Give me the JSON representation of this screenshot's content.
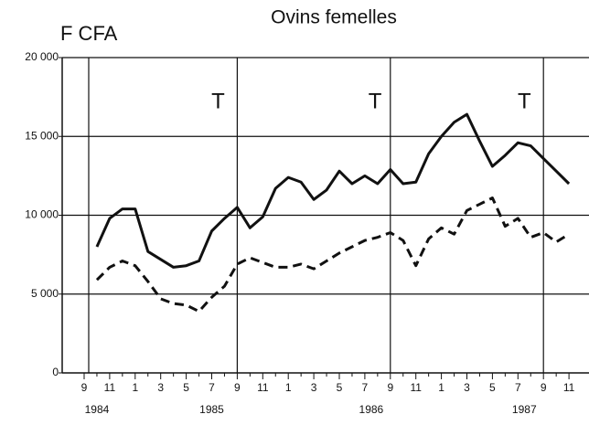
{
  "chart_data": {
    "type": "line",
    "title": "Ovins femelles",
    "ylabel": "F CFA",
    "categories": [
      "9",
      null,
      "11",
      null,
      "1",
      null,
      "3",
      null,
      "5",
      null,
      "7",
      null,
      "9",
      null,
      "11",
      null,
      "1",
      null,
      "3",
      null,
      "5",
      null,
      "7",
      null,
      "9",
      null,
      "11",
      null,
      "1",
      null,
      "3",
      null,
      "5",
      null,
      "7",
      null,
      "9",
      null,
      "11"
    ],
    "year_labels": [
      "1984",
      "1985",
      "1986",
      "1987"
    ],
    "annotations": [
      "T",
      "T",
      "T"
    ],
    "series": [
      {
        "name": "solid",
        "color": "#111111",
        "dash": false,
        "values": [
          null,
          8000,
          9800,
          10400,
          10400,
          7700,
          7200,
          6700,
          6800,
          7100,
          9000,
          9800,
          10500,
          9200,
          9900,
          11700,
          12400,
          12100,
          11000,
          11600,
          12800,
          12000,
          12500,
          12000,
          12900,
          12000,
          12100,
          13900,
          15000,
          15900,
          16400,
          14700,
          13100,
          13800,
          14600,
          14400,
          13600,
          12800,
          12000
        ]
      },
      {
        "name": "dashed",
        "color": "#111111",
        "dash": true,
        "values": [
          null,
          5900,
          6700,
          7100,
          6800,
          5800,
          4700,
          4400,
          4300,
          3900,
          4800,
          5500,
          6900,
          7300,
          7000,
          6700,
          6700,
          6900,
          6600,
          7100,
          7600,
          8000,
          8400,
          8600,
          8900,
          8400,
          6800,
          8500,
          9200,
          8800,
          10300,
          10700,
          11100,
          9300,
          9800,
          8600,
          8900,
          8300,
          8800
        ]
      }
    ],
    "ylim": [
      0,
      20000
    ],
    "yticks": [
      {
        "value": 0,
        "label": "0"
      },
      {
        "value": 5000,
        "label": "5 000"
      },
      {
        "value": 10000,
        "label": "10 000"
      },
      {
        "value": 15000,
        "label": "15 000"
      },
      {
        "value": 20000,
        "label": "20 000"
      }
    ],
    "grid": true
  }
}
